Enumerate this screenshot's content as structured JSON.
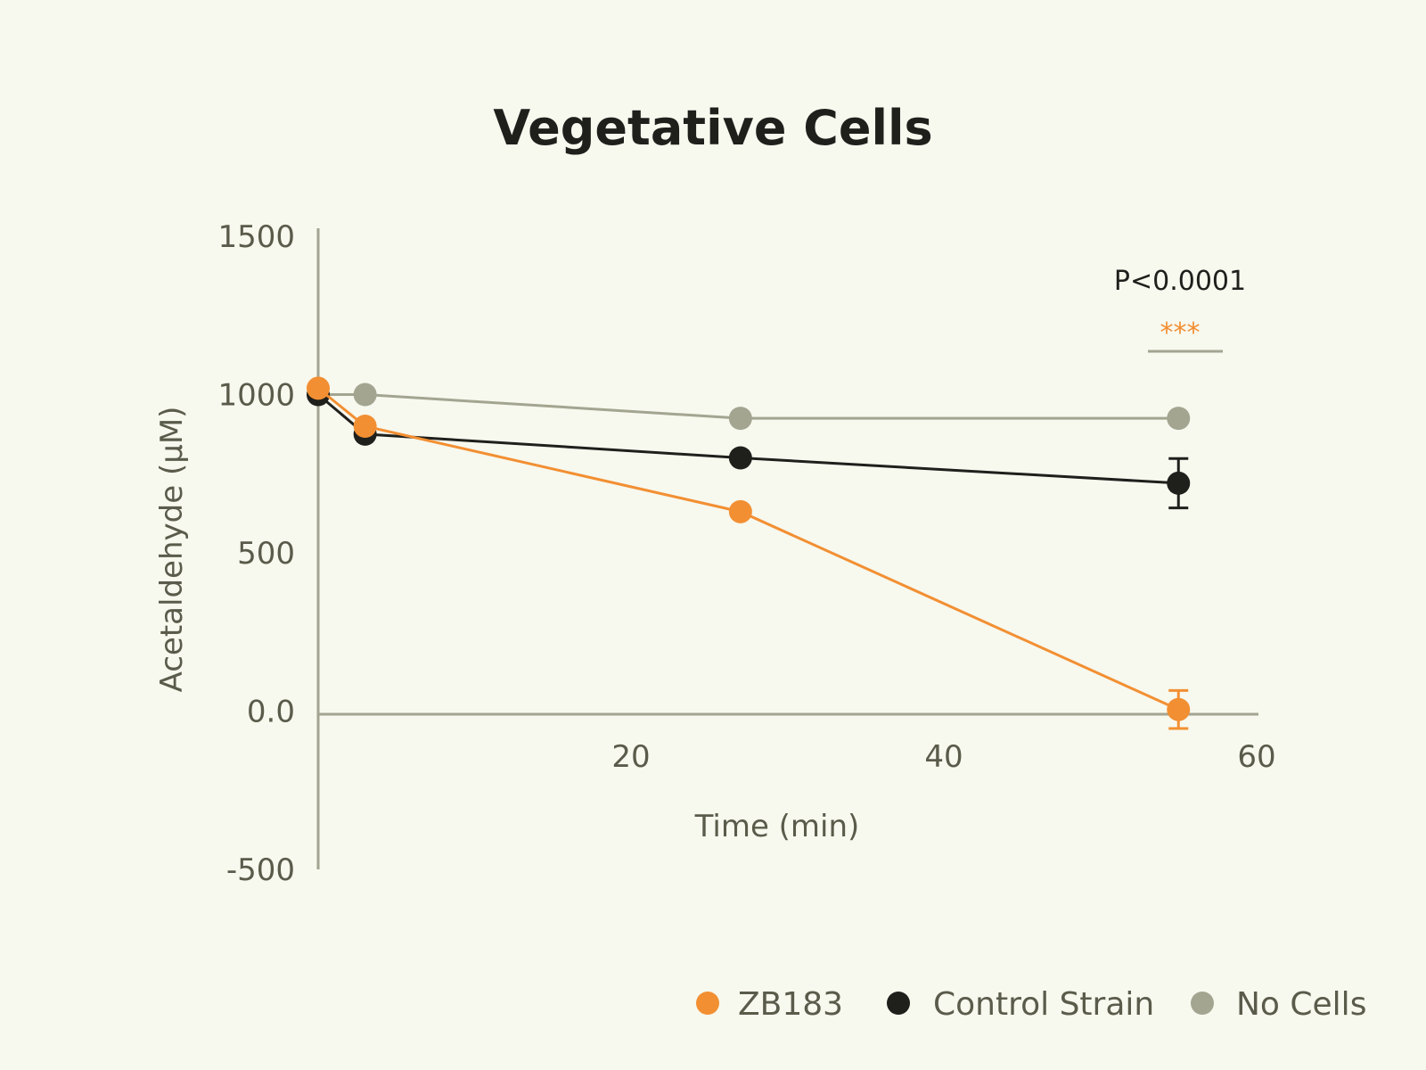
{
  "chart_data": {
    "type": "line",
    "title": "Vegetative Cells",
    "xlabel": "Time (min)",
    "ylabel": "Acetaldehyde (µM)",
    "xlim": [
      0,
      60
    ],
    "ylim": [
      -500,
      1500
    ],
    "x_ticks": [
      20,
      40,
      60
    ],
    "x_tick_labels": [
      "20",
      "40",
      "60"
    ],
    "y_ticks": [
      -500,
      0,
      500,
      1000,
      1500
    ],
    "y_tick_labels": [
      "-500",
      "0.0",
      "500",
      "1000",
      "1500"
    ],
    "grid": false,
    "legend_position": "bottom-right",
    "series": [
      {
        "name": "No Cells",
        "color": "#a3a591",
        "x": [
          0,
          3,
          27,
          55
        ],
        "y": [
          1000,
          1000,
          925,
          925
        ],
        "err": [
          0,
          0,
          0,
          0
        ]
      },
      {
        "name": "Control Strain",
        "color": "#1f1f1c",
        "x": [
          0,
          3,
          27,
          55
        ],
        "y": [
          1000,
          875,
          800,
          720
        ],
        "err": [
          0,
          0,
          0,
          78
        ]
      },
      {
        "name": "ZB183",
        "color": "#f28f32",
        "x": [
          0,
          3,
          27,
          55
        ],
        "y": [
          1020,
          900,
          630,
          5
        ],
        "err": [
          0,
          0,
          0,
          60
        ]
      }
    ],
    "annotations": {
      "pvalue": "P<0.0001",
      "stars": "***"
    }
  },
  "legend": [
    {
      "label": "ZB183",
      "color": "#f28f32"
    },
    {
      "label": "Control Strain",
      "color": "#1f1f1c"
    },
    {
      "label": "No Cells",
      "color": "#a3a591"
    }
  ],
  "colors": {
    "background": "#f7f8ee",
    "axis": "#a3a591",
    "text": "#5a5b4a"
  }
}
